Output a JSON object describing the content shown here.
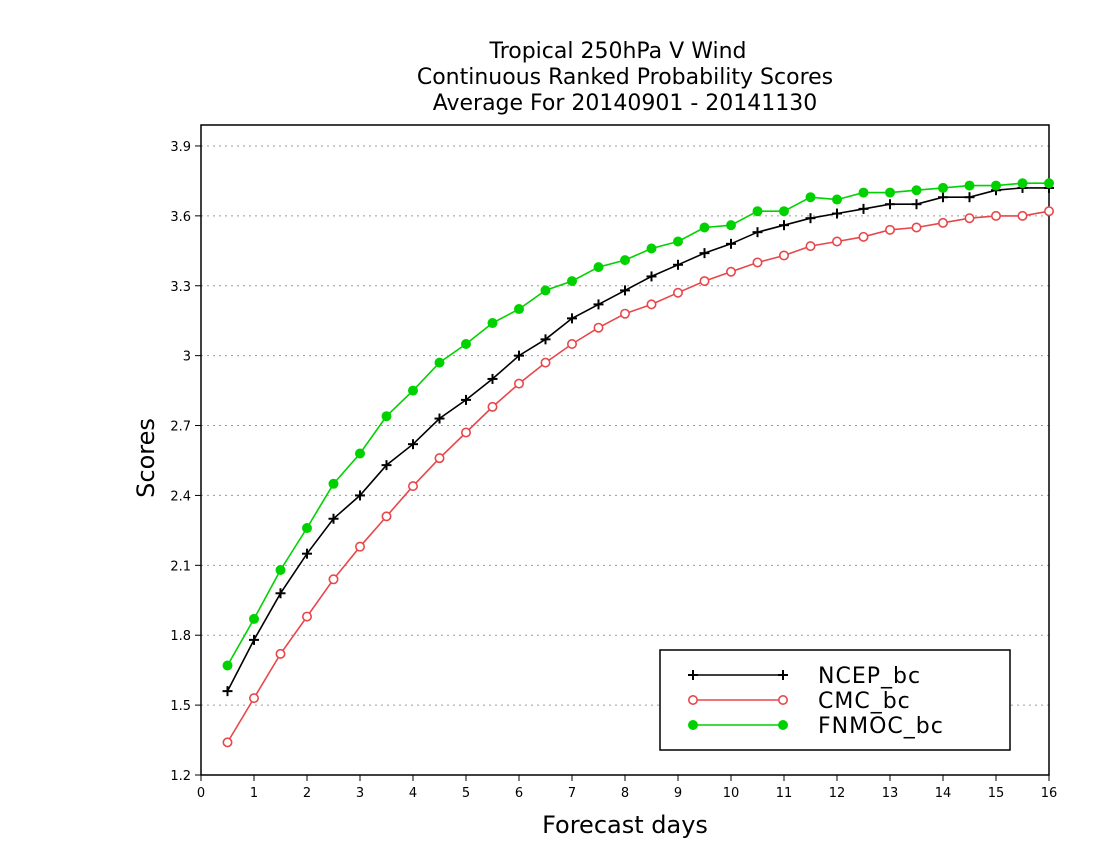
{
  "chart_data": {
    "type": "line",
    "title_lines": [
      "Tropical 250hPa V Wind",
      "Continuous Ranked Probability Scores",
      "Average For 20140901 - 20141130"
    ],
    "xlabel": "Forecast days",
    "ylabel": "Scores",
    "xlim": [
      0,
      16
    ],
    "ylim": [
      1.2,
      3.99
    ],
    "x_ticks": [
      0,
      1,
      2,
      3,
      4,
      5,
      6,
      7,
      8,
      9,
      10,
      11,
      12,
      13,
      14,
      15,
      16
    ],
    "x_tick_labels": [
      "0",
      "1",
      "2",
      "3",
      "4",
      "5",
      "6",
      "7",
      "8",
      "9",
      "10",
      "11",
      "12",
      "13",
      "14",
      "15",
      "16"
    ],
    "y_ticks": [
      1.2,
      1.5,
      1.8,
      2.1,
      2.4,
      2.7,
      3.0,
      3.3,
      3.6,
      3.9
    ],
    "y_tick_labels": [
      "1.2",
      "1.5",
      "1.8",
      "2.1",
      "2.4",
      "2.7",
      "3",
      "3.3",
      "3.6",
      "3.9"
    ],
    "grid": "horizontal dotted",
    "legend_position": "bottom-right",
    "x": [
      0.5,
      1,
      1.5,
      2,
      2.5,
      3,
      3.5,
      4,
      4.5,
      5,
      5.5,
      6,
      6.5,
      7,
      7.5,
      8,
      8.5,
      9,
      9.5,
      10,
      10.5,
      11,
      11.5,
      12,
      12.5,
      13,
      13.5,
      14,
      14.5,
      15,
      15.5,
      16
    ],
    "series": [
      {
        "name": "NCEP_bc",
        "color": "#000000",
        "marker": "plus",
        "values": [
          1.56,
          1.78,
          1.98,
          2.15,
          2.3,
          2.4,
          2.53,
          2.62,
          2.73,
          2.81,
          2.9,
          3.0,
          3.07,
          3.16,
          3.22,
          3.28,
          3.34,
          3.39,
          3.44,
          3.48,
          3.53,
          3.56,
          3.59,
          3.61,
          3.63,
          3.65,
          3.65,
          3.68,
          3.68,
          3.71,
          3.72,
          3.72
        ]
      },
      {
        "name": "CMC_bc",
        "color": "#e8474a",
        "marker": "open-circle",
        "values": [
          1.34,
          1.53,
          1.72,
          1.88,
          2.04,
          2.18,
          2.31,
          2.44,
          2.56,
          2.67,
          2.78,
          2.88,
          2.97,
          3.05,
          3.12,
          3.18,
          3.22,
          3.27,
          3.32,
          3.36,
          3.4,
          3.43,
          3.47,
          3.49,
          3.51,
          3.54,
          3.55,
          3.57,
          3.59,
          3.6,
          3.6,
          3.62
        ]
      },
      {
        "name": "FNMOC_bc",
        "color": "#00d200",
        "marker": "filled-circle",
        "values": [
          1.67,
          1.87,
          2.08,
          2.26,
          2.45,
          2.58,
          2.74,
          2.85,
          2.97,
          3.05,
          3.14,
          3.2,
          3.28,
          3.32,
          3.38,
          3.41,
          3.46,
          3.49,
          3.55,
          3.56,
          3.62,
          3.62,
          3.68,
          3.67,
          3.7,
          3.7,
          3.71,
          3.72,
          3.73,
          3.73,
          3.74,
          3.74
        ]
      }
    ]
  }
}
